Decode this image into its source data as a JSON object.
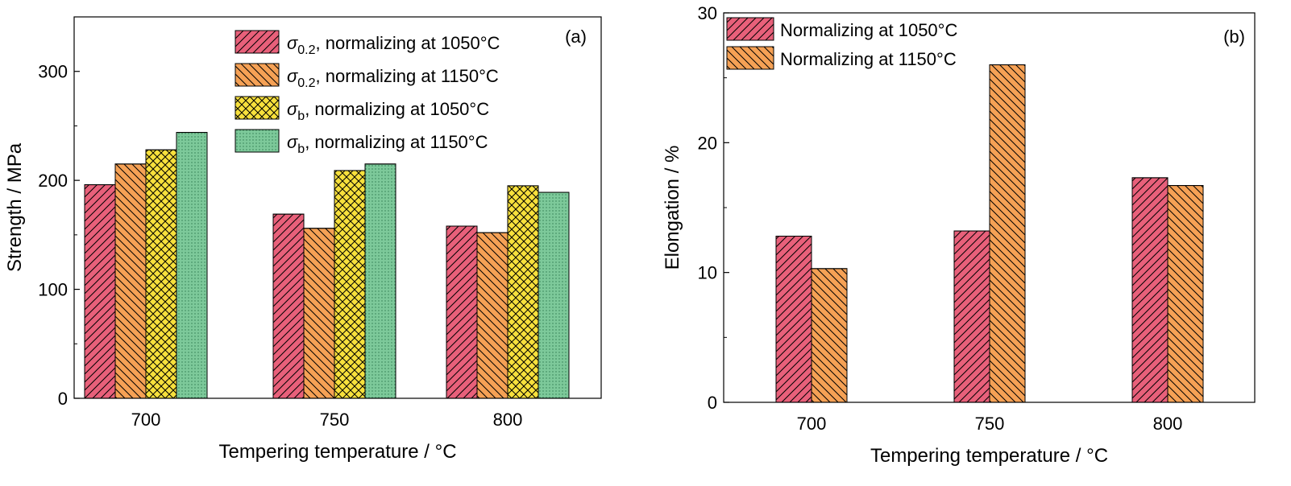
{
  "chart_data": [
    {
      "type": "bar",
      "panel_label": "(a)",
      "xlabel": "Tempering temperature / °C",
      "ylabel": "Strength / MPa",
      "ylim": [
        0,
        350
      ],
      "yticks": [
        0,
        100,
        200,
        300
      ],
      "categories": [
        "700",
        "750",
        "800"
      ],
      "legend_position": "top-right",
      "series": [
        {
          "name": "σ0.2, normalizing at 1050°C",
          "symbol": "σ",
          "sub": "0.2",
          "rest": ", normalizing at 1050°C",
          "color": "#e8607a",
          "pattern": "diag-right",
          "values": [
            196,
            169,
            158
          ]
        },
        {
          "name": "σ0.2, normalizing at 1150°C",
          "symbol": "σ",
          "sub": "0.2",
          "rest": ", normalizing at 1150°C",
          "color": "#f5a155",
          "pattern": "diag-left",
          "values": [
            215,
            156,
            152
          ]
        },
        {
          "name": "σb, normalizing at 1050°C",
          "symbol": "σ",
          "sub": "b",
          "rest": ", normalizing at 1050°C",
          "color": "#f7e03c",
          "pattern": "crosshatch",
          "values": [
            228,
            209,
            195
          ]
        },
        {
          "name": "σb, normalizing at 1150°C",
          "symbol": "σ",
          "sub": "b",
          "rest": ", normalizing at 1150°C",
          "color": "#7dc99a",
          "pattern": "dots",
          "values": [
            244,
            215,
            189
          ]
        }
      ]
    },
    {
      "type": "bar",
      "panel_label": "(b)",
      "xlabel": "Tempering temperature / °C",
      "ylabel": "Elongation / %",
      "ylim": [
        0,
        30
      ],
      "yticks": [
        0,
        10,
        20,
        30
      ],
      "categories": [
        "700",
        "750",
        "800"
      ],
      "legend_position": "top-left",
      "series": [
        {
          "name": "Normalizing at 1050°C",
          "color": "#e8607a",
          "pattern": "diag-right",
          "values": [
            12.8,
            13.2,
            17.3
          ]
        },
        {
          "name": "Normalizing at 1150°C",
          "color": "#f5a155",
          "pattern": "diag-left",
          "values": [
            10.3,
            26.0,
            16.7
          ]
        }
      ]
    }
  ]
}
